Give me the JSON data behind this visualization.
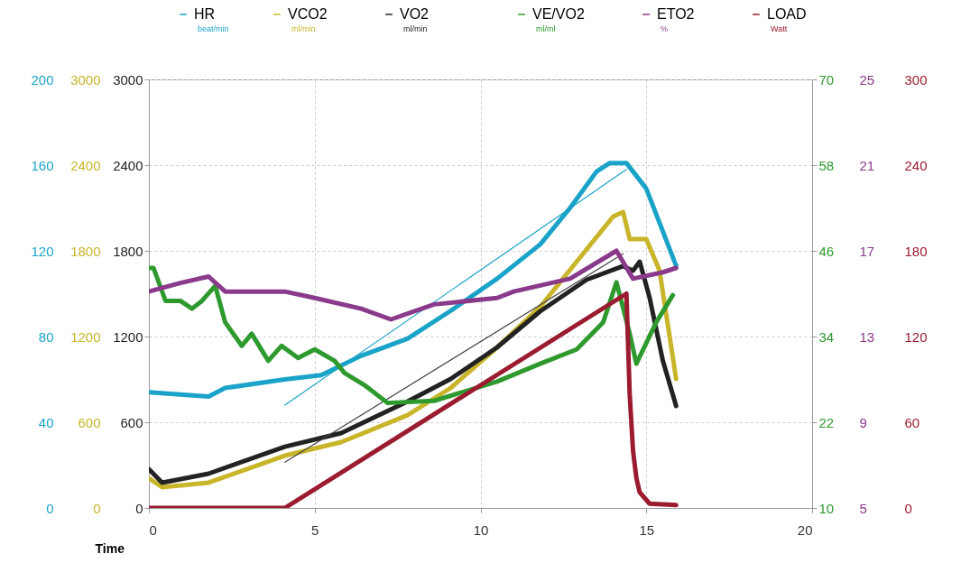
{
  "chart_data": [
    {
      "type": "line",
      "xlabel": "Time",
      "xlim": [
        0,
        20
      ],
      "xticks": [
        0,
        5,
        10,
        15,
        20
      ],
      "ylim": [
        0,
        200
      ],
      "yticks": [
        0,
        40,
        80,
        120,
        160,
        200
      ],
      "y2lim": [
        0,
        3000
      ],
      "y2ticks": [
        0,
        600,
        1200,
        1800,
        2400,
        3000
      ],
      "y3lim": [
        0,
        3000
      ],
      "y3ticks": [
        0,
        600,
        1200,
        1800,
        2400,
        3000
      ],
      "grid": true,
      "legend": "top",
      "annotations": [
        "beat/min",
        "ml/min",
        "ml/min"
      ],
      "series": [
        {
          "name": "HR",
          "color": "#1aa3c8",
          "x": [
            0,
            1.8,
            2.3,
            4.1,
            5.2,
            6.4,
            7.8,
            9.1,
            10.5,
            11.8,
            12.7,
            13.5,
            13.9,
            14.4,
            15.0,
            15.9
          ],
          "values": [
            54,
            52,
            56,
            60,
            62,
            71,
            79,
            92,
            107,
            123,
            140,
            157,
            161,
            161,
            149,
            113
          ]
        },
        {
          "name": "VCO2",
          "color": "#c8b52a",
          "axis": "y2",
          "x": [
            0,
            0.4,
            1.8,
            4.1,
            5.8,
            7.8,
            9.1,
            10.5,
            11.8,
            12.9,
            14.0,
            14.3,
            14.5,
            15.0,
            15.4,
            15.9
          ],
          "values": [
            208,
            145,
            177,
            366,
            461,
            650,
            840,
            1124,
            1408,
            1724,
            2040,
            2072,
            1882,
            1882,
            1661,
            903
          ]
        },
        {
          "name": "VO2",
          "color": "#222222",
          "axis": "y3",
          "x": [
            0,
            0.4,
            1.8,
            4.1,
            5.8,
            7.8,
            9.1,
            10.5,
            11.8,
            13.2,
            14.3,
            14.6,
            14.8,
            15.1,
            15.5,
            15.9
          ],
          "values": [
            272,
            177,
            240,
            429,
            524,
            745,
            903,
            1124,
            1377,
            1598,
            1693,
            1661,
            1724,
            1472,
            1029,
            714
          ]
        },
        {
          "color": "#1aa3c8",
          "x": [
            4.1,
            14.4
          ],
          "values": [
            48,
            158
          ]
        },
        {
          "color": "#444444",
          "axis": "y3",
          "x": [
            4.1,
            14.3
          ],
          "values": [
            320,
            1780
          ]
        }
      ]
    },
    {
      "type": "line",
      "xlim": [
        0,
        20
      ],
      "xticks": [
        0,
        5,
        10,
        15,
        20
      ],
      "tick_labels": "y",
      "ylim": [
        10,
        70
      ],
      "yticks": [
        10,
        22,
        34,
        46,
        58,
        70
      ],
      "y2lim": [
        5,
        25
      ],
      "y2ticks": [
        5,
        9,
        13,
        17,
        21,
        25
      ],
      "y3lim": [
        0,
        300
      ],
      "y3ticks": [
        0,
        60,
        120,
        180,
        240,
        300
      ],
      "legend": "top",
      "annotations": [
        "ml/ml",
        "%",
        "Watt"
      ],
      "series": [
        {
          "name": "VE/VO2",
          "color": "#2e9a2e",
          "x": [
            0,
            0.14,
            0.5,
            0.95,
            1.3,
            1.6,
            2.0,
            2.3,
            2.8,
            3.1,
            3.6,
            4.0,
            4.5,
            5.0,
            5.6,
            5.9,
            6.5,
            7.2,
            8.6,
            10.5,
            11.8,
            12.9,
            13.7,
            14.1,
            14.5,
            14.7,
            15.3,
            15.8
          ],
          "values": [
            43.6,
            43.6,
            39.0,
            39.0,
            37.9,
            39.0,
            41.1,
            36.0,
            32.7,
            34.4,
            30.6,
            32.7,
            31.0,
            32.2,
            30.6,
            28.9,
            27.2,
            24.7,
            25.0,
            27.7,
            30.2,
            32.2,
            36.0,
            41.6,
            34.4,
            30.2,
            36.0,
            39.8
          ]
        },
        {
          "name": "ETO2",
          "color": "#8a3a8a",
          "axis": "y2",
          "x": [
            0,
            0.95,
            1.8,
            2.3,
            3.1,
            4.1,
            5.0,
            6.4,
            7.3,
            8.6,
            10.5,
            11.0,
            12.7,
            14.1,
            14.6,
            15.5,
            15.9
          ],
          "values": [
            15.1,
            15.5,
            15.8,
            15.1,
            15.1,
            15.1,
            14.8,
            14.3,
            13.8,
            14.5,
            14.8,
            15.1,
            15.7,
            17.0,
            15.7,
            16.0,
            16.2
          ]
        },
        {
          "name": "LOAD",
          "color": "#9b1b30",
          "axis": "y3",
          "x": [
            0,
            4.1,
            14.4,
            14.5,
            14.6,
            14.7,
            14.8,
            15.1,
            15.9
          ],
          "values": [
            0,
            0,
            150,
            79,
            40,
            21,
            11,
            3,
            2
          ]
        }
      ]
    }
  ]
}
